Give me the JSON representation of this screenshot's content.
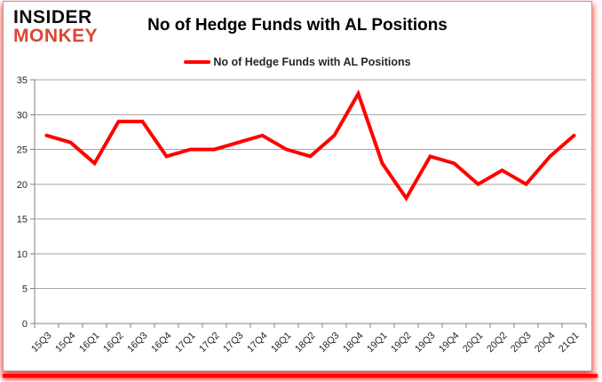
{
  "brand": {
    "line1": "INSIDER",
    "line2": "MONKEY"
  },
  "header": {
    "title": "No of Hedge Funds with AL Positions"
  },
  "legend": {
    "label": "No of Hedge Funds with AL Positions"
  },
  "chart_data": {
    "type": "line",
    "title": "No of Hedge Funds with AL Positions",
    "categories": [
      "15Q3",
      "15Q4",
      "16Q1",
      "16Q2",
      "16Q3",
      "16Q4",
      "17Q1",
      "17Q2",
      "17Q3",
      "17Q4",
      "18Q1",
      "18Q2",
      "18Q3",
      "18Q4",
      "19Q1",
      "19Q2",
      "19Q3",
      "19Q4",
      "20Q1",
      "20Q2",
      "20Q3",
      "20Q4",
      "21Q1"
    ],
    "series": [
      {
        "name": "No of Hedge Funds with AL Positions",
        "color": "#ff0000",
        "values": [
          27,
          26,
          23,
          29,
          29,
          24,
          25,
          25,
          26,
          27,
          25,
          24,
          27,
          33,
          23,
          18,
          24,
          23,
          20,
          22,
          20,
          24,
          27
        ]
      }
    ],
    "xlabel": "",
    "ylabel": "",
    "ylim": [
      0,
      35
    ],
    "yticks": [
      0,
      5,
      10,
      15,
      20,
      25,
      30,
      35
    ],
    "grid": true,
    "legend_position": "top-center"
  },
  "colors": {
    "line": "#ff0000",
    "grid": "#a6a6a6",
    "axis": "#808080",
    "tick_text": "#262626",
    "brand_black": "#0d0d0d",
    "brand_red": "#d94732",
    "frame_border": "#a3a3a3",
    "accent_bar": "#ff0000"
  }
}
